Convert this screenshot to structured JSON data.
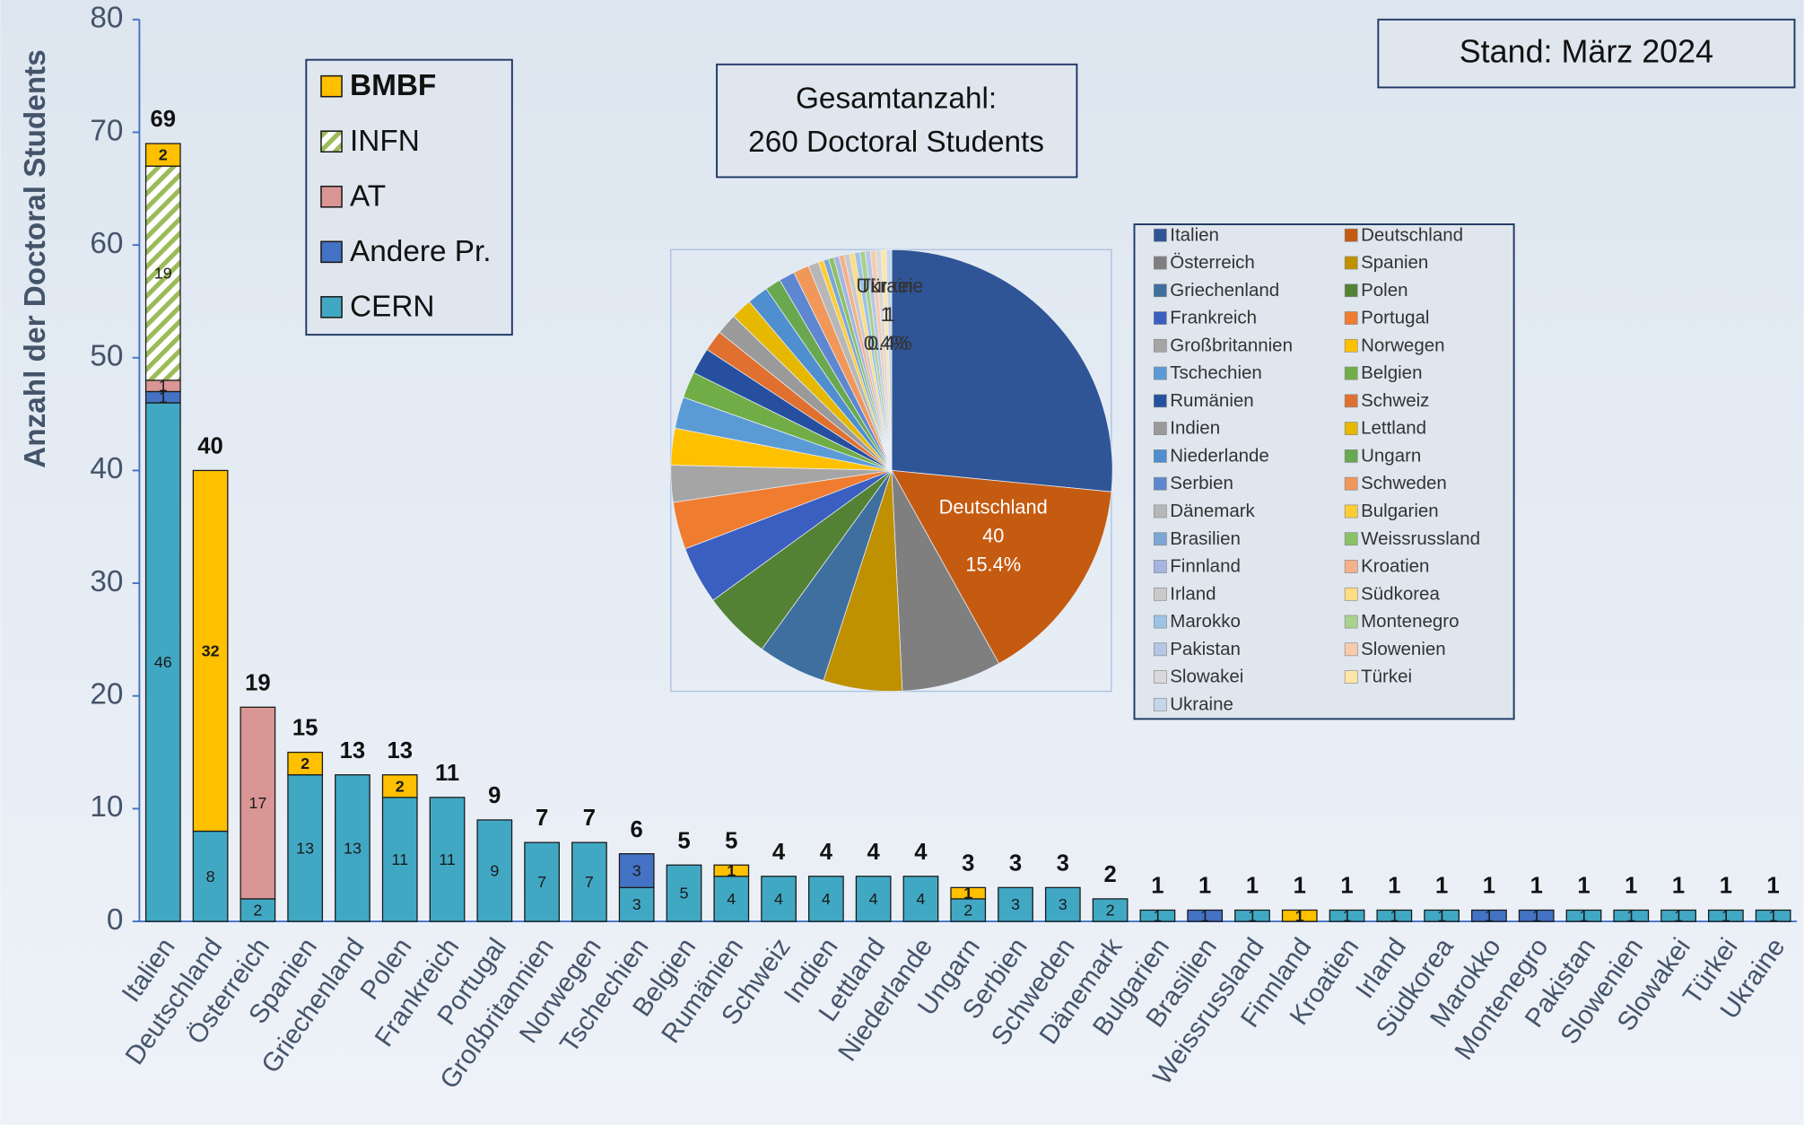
{
  "chart_data": [
    {
      "type": "bar",
      "stacked": true,
      "ylabel": "Anzahl der Doctoral Students",
      "annotations": [
        "Stand: März 2024",
        "Gesamtanzahl:",
        "260 Doctoral Students"
      ],
      "categories": [
        "Italien",
        "Deutschland",
        "Österreich",
        "Spanien",
        "Griechenland",
        "Polen",
        "Frankreich",
        "Portugal",
        "Großbritannien",
        "Norwegen",
        "Tschechien",
        "Belgien",
        "Rumänien",
        "Schweiz",
        "Indien",
        "Lettland",
        "Niederlande",
        "Ungarn",
        "Serbien",
        "Schweden",
        "Dänemark",
        "Bulgarien",
        "Brasilien",
        "Weissrussland",
        "Finnland",
        "Kroatien",
        "Irland",
        "Südkorea",
        "Marokko",
        "Montenegro",
        "Pakistan",
        "Slowenien",
        "Slowakei",
        "Türkei",
        "Ukraine"
      ],
      "series": [
        {
          "name": "CERN",
          "color": "#41a8c4",
          "values": [
            46,
            8,
            2,
            13,
            13,
            11,
            11,
            9,
            7,
            7,
            3,
            5,
            4,
            4,
            4,
            4,
            4,
            2,
            3,
            3,
            2,
            1,
            0,
            1,
            0,
            1,
            1,
            1,
            0,
            0,
            1,
            1,
            1,
            1,
            1
          ]
        },
        {
          "name": "Andere Pr.",
          "color": "#4472c4",
          "values": [
            1,
            0,
            0,
            0,
            0,
            0,
            0,
            0,
            0,
            0,
            3,
            0,
            0,
            0,
            0,
            0,
            0,
            0,
            0,
            0,
            0,
            0,
            1,
            0,
            0,
            0,
            0,
            0,
            1,
            1,
            0,
            0,
            0,
            0,
            0
          ]
        },
        {
          "name": "AT",
          "color": "#d99694",
          "values": [
            1,
            0,
            17,
            0,
            0,
            0,
            0,
            0,
            0,
            0,
            0,
            0,
            0,
            0,
            0,
            0,
            0,
            0,
            0,
            0,
            0,
            0,
            0,
            0,
            0,
            0,
            0,
            0,
            0,
            0,
            0,
            0,
            0,
            0,
            0
          ]
        },
        {
          "name": "INFN",
          "color": "#9bbb59",
          "pattern": "hatch",
          "values": [
            19,
            0,
            0,
            0,
            0,
            0,
            0,
            0,
            0,
            0,
            0,
            0,
            0,
            0,
            0,
            0,
            0,
            0,
            0,
            0,
            0,
            0,
            0,
            0,
            0,
            0,
            0,
            0,
            0,
            0,
            0,
            0,
            0,
            0,
            0
          ]
        },
        {
          "name": "BMBF",
          "color": "#ffc000",
          "values": [
            2,
            32,
            0,
            2,
            0,
            2,
            0,
            0,
            0,
            0,
            0,
            0,
            1,
            0,
            0,
            0,
            0,
            1,
            0,
            0,
            0,
            0,
            0,
            0,
            1,
            0,
            0,
            0,
            0,
            0,
            0,
            0,
            0,
            0,
            0
          ]
        }
      ],
      "totals": [
        69,
        40,
        19,
        15,
        13,
        13,
        11,
        9,
        7,
        7,
        6,
        5,
        5,
        4,
        4,
        4,
        4,
        3,
        3,
        3,
        2,
        1,
        1,
        1,
        1,
        1,
        1,
        1,
        1,
        1,
        1,
        1,
        1,
        1,
        1
      ],
      "ylim": [
        0,
        80
      ],
      "yticks": [
        0,
        10,
        20,
        30,
        40,
        50,
        60,
        70,
        80
      ],
      "grid": false,
      "legend": "upper left"
    },
    {
      "type": "pie",
      "categories": [
        "Italien",
        "Deutschland",
        "Österreich",
        "Spanien",
        "Griechenland",
        "Polen",
        "Frankreich",
        "Portugal",
        "Großbritannien",
        "Norwegen",
        "Tschechien",
        "Belgien",
        "Rumänien",
        "Schweiz",
        "Indien",
        "Lettland",
        "Niederlande",
        "Ungarn",
        "Serbien",
        "Schweden",
        "Dänemark",
        "Bulgarien",
        "Brasilien",
        "Weissrussland",
        "Finnland",
        "Kroatien",
        "Irland",
        "Südkorea",
        "Marokko",
        "Montenegro",
        "Pakistan",
        "Slowenien",
        "Slowakei",
        "Türkei",
        "Ukraine"
      ],
      "values": [
        69,
        40,
        19,
        15,
        13,
        13,
        11,
        9,
        7,
        7,
        6,
        5,
        5,
        4,
        4,
        4,
        4,
        3,
        3,
        3,
        2,
        1,
        1,
        1,
        1,
        1,
        1,
        1,
        1,
        1,
        1,
        1,
        1,
        1,
        1
      ],
      "value_labels": [
        null,
        "15.4%",
        null,
        null,
        null,
        null,
        null,
        null,
        null,
        null,
        null,
        null,
        null,
        null,
        null,
        null,
        null,
        null,
        null,
        null,
        null,
        null,
        null,
        null,
        null,
        null,
        null,
        null,
        null,
        null,
        null,
        null,
        null,
        "0.4%",
        "0.4%"
      ],
      "colors": [
        "#2f5597",
        "#c55a11",
        "#7f7f7f",
        "#bf9000",
        "#3f6f9f",
        "#548235",
        "#3a5fc0",
        "#f07c30",
        "#a5a5a5",
        "#ffc000",
        "#5b9bd5",
        "#70ad47",
        "#264fa0",
        "#e07030",
        "#9a9a9a",
        "#e6b800",
        "#4f8fcf",
        "#6aa84f",
        "#5f86d0",
        "#f1975a",
        "#b7b7b7",
        "#ffcd33",
        "#7ca7d5",
        "#8cc168",
        "#a3b5e0",
        "#f4b18a",
        "#c9c9c9",
        "#ffdd80",
        "#9dc3e6",
        "#a9d18e",
        "#b4c7e7",
        "#f8cbad",
        "#d9d9d9",
        "#fee6a8",
        "#c5d5ea"
      ],
      "legend": "right"
    }
  ]
}
